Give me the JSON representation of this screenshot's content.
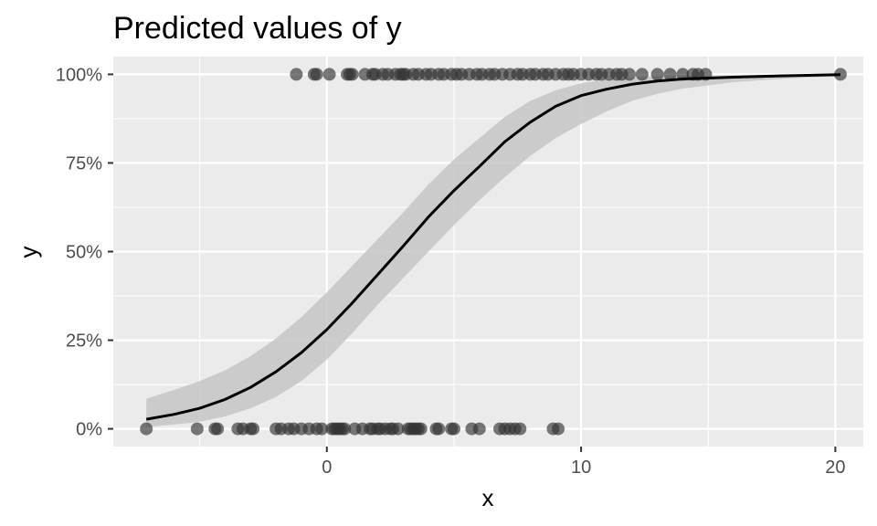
{
  "chart_data": {
    "type": "scatter",
    "title": "Predicted values of y",
    "xlabel": "x",
    "ylabel": "y",
    "xlim": [
      -8.4,
      21.1
    ],
    "ylim": [
      -0.05,
      1.05
    ],
    "x_ticks": [
      0,
      10,
      20
    ],
    "x_tick_labels": [
      "0",
      "10",
      "20"
    ],
    "y_ticks": [
      0,
      0.25,
      0.5,
      0.75,
      1.0
    ],
    "y_tick_labels": [
      "0%",
      "25%",
      "50%",
      "75%",
      "100%"
    ],
    "grid": true,
    "colors": {
      "panel": "#ebebeb",
      "grid": "#ffffff",
      "line": "#000000",
      "ribbon": "#c6c6c6",
      "points": "#333333"
    },
    "points": [
      {
        "x": -7.1,
        "y": 0
      },
      {
        "x": -5.1,
        "y": 0
      },
      {
        "x": -4.4,
        "y": 0
      },
      {
        "x": -4.3,
        "y": 0
      },
      {
        "x": -3.5,
        "y": 0
      },
      {
        "x": -3.3,
        "y": 0
      },
      {
        "x": -3.0,
        "y": 0
      },
      {
        "x": -2.9,
        "y": 0
      },
      {
        "x": -2.0,
        "y": 0
      },
      {
        "x": -1.8,
        "y": 0
      },
      {
        "x": -1.5,
        "y": 0
      },
      {
        "x": -1.3,
        "y": 0
      },
      {
        "x": -1.0,
        "y": 0
      },
      {
        "x": -0.7,
        "y": 0
      },
      {
        "x": -0.4,
        "y": 0
      },
      {
        "x": -0.2,
        "y": 0
      },
      {
        "x": 0.2,
        "y": 0
      },
      {
        "x": 0.3,
        "y": 0
      },
      {
        "x": 0.4,
        "y": 0
      },
      {
        "x": 0.5,
        "y": 0
      },
      {
        "x": 0.6,
        "y": 0
      },
      {
        "x": 0.7,
        "y": 0
      },
      {
        "x": 1.1,
        "y": 0
      },
      {
        "x": 1.4,
        "y": 0
      },
      {
        "x": 1.7,
        "y": 0
      },
      {
        "x": 1.8,
        "y": 0
      },
      {
        "x": 2.0,
        "y": 0
      },
      {
        "x": 2.1,
        "y": 0
      },
      {
        "x": 2.3,
        "y": 0
      },
      {
        "x": 2.5,
        "y": 0
      },
      {
        "x": 2.6,
        "y": 0
      },
      {
        "x": 2.8,
        "y": 0
      },
      {
        "x": 3.2,
        "y": 0
      },
      {
        "x": 3.3,
        "y": 0
      },
      {
        "x": 3.4,
        "y": 0
      },
      {
        "x": 3.5,
        "y": 0
      },
      {
        "x": 3.6,
        "y": 0
      },
      {
        "x": 3.7,
        "y": 0
      },
      {
        "x": 4.3,
        "y": 0
      },
      {
        "x": 4.4,
        "y": 0
      },
      {
        "x": 4.9,
        "y": 0
      },
      {
        "x": 5.0,
        "y": 0
      },
      {
        "x": 5.7,
        "y": 0
      },
      {
        "x": 6.0,
        "y": 0
      },
      {
        "x": 6.8,
        "y": 0
      },
      {
        "x": 7.0,
        "y": 0
      },
      {
        "x": 7.2,
        "y": 0
      },
      {
        "x": 7.4,
        "y": 0
      },
      {
        "x": 7.6,
        "y": 0
      },
      {
        "x": 8.9,
        "y": 0
      },
      {
        "x": 9.1,
        "y": 0
      },
      {
        "x": -1.2,
        "y": 1
      },
      {
        "x": -0.5,
        "y": 1
      },
      {
        "x": -0.4,
        "y": 1
      },
      {
        "x": 0.1,
        "y": 1
      },
      {
        "x": 0.8,
        "y": 1
      },
      {
        "x": 0.9,
        "y": 1
      },
      {
        "x": 1.0,
        "y": 1
      },
      {
        "x": 1.5,
        "y": 1
      },
      {
        "x": 1.8,
        "y": 1
      },
      {
        "x": 1.9,
        "y": 1
      },
      {
        "x": 2.2,
        "y": 1
      },
      {
        "x": 2.4,
        "y": 1
      },
      {
        "x": 2.7,
        "y": 1
      },
      {
        "x": 2.9,
        "y": 1
      },
      {
        "x": 3.0,
        "y": 1
      },
      {
        "x": 3.1,
        "y": 1
      },
      {
        "x": 3.4,
        "y": 1
      },
      {
        "x": 3.6,
        "y": 1
      },
      {
        "x": 3.9,
        "y": 1
      },
      {
        "x": 4.1,
        "y": 1
      },
      {
        "x": 4.4,
        "y": 1
      },
      {
        "x": 4.6,
        "y": 1
      },
      {
        "x": 4.9,
        "y": 1
      },
      {
        "x": 5.1,
        "y": 1
      },
      {
        "x": 5.3,
        "y": 1
      },
      {
        "x": 5.6,
        "y": 1
      },
      {
        "x": 5.9,
        "y": 1
      },
      {
        "x": 6.1,
        "y": 1
      },
      {
        "x": 6.4,
        "y": 1
      },
      {
        "x": 6.6,
        "y": 1
      },
      {
        "x": 6.9,
        "y": 1
      },
      {
        "x": 7.2,
        "y": 1
      },
      {
        "x": 7.5,
        "y": 1
      },
      {
        "x": 7.7,
        "y": 1
      },
      {
        "x": 8.0,
        "y": 1
      },
      {
        "x": 8.2,
        "y": 1
      },
      {
        "x": 8.5,
        "y": 1
      },
      {
        "x": 8.7,
        "y": 1
      },
      {
        "x": 9.0,
        "y": 1
      },
      {
        "x": 9.3,
        "y": 1
      },
      {
        "x": 9.5,
        "y": 1
      },
      {
        "x": 9.7,
        "y": 1
      },
      {
        "x": 10.0,
        "y": 1
      },
      {
        "x": 10.3,
        "y": 1
      },
      {
        "x": 10.6,
        "y": 1
      },
      {
        "x": 10.8,
        "y": 1
      },
      {
        "x": 11.1,
        "y": 1
      },
      {
        "x": 11.4,
        "y": 1
      },
      {
        "x": 11.6,
        "y": 1
      },
      {
        "x": 11.9,
        "y": 1
      },
      {
        "x": 12.4,
        "y": 1
      },
      {
        "x": 13.0,
        "y": 1
      },
      {
        "x": 13.5,
        "y": 1
      },
      {
        "x": 14.0,
        "y": 1
      },
      {
        "x": 14.4,
        "y": 1
      },
      {
        "x": 14.6,
        "y": 1
      },
      {
        "x": 14.9,
        "y": 1
      },
      {
        "x": 20.2,
        "y": 1
      }
    ],
    "curve": [
      {
        "x": -7.1,
        "y": 0.027,
        "lower": 0.005,
        "upper": 0.085
      },
      {
        "x": -6.0,
        "y": 0.041,
        "lower": 0.012,
        "upper": 0.11
      },
      {
        "x": -5.0,
        "y": 0.058,
        "lower": 0.02,
        "upper": 0.135
      },
      {
        "x": -4.0,
        "y": 0.083,
        "lower": 0.035,
        "upper": 0.165
      },
      {
        "x": -3.0,
        "y": 0.117,
        "lower": 0.058,
        "upper": 0.205
      },
      {
        "x": -2.0,
        "y": 0.161,
        "lower": 0.09,
        "upper": 0.255
      },
      {
        "x": -1.0,
        "y": 0.215,
        "lower": 0.135,
        "upper": 0.315
      },
      {
        "x": 0.0,
        "y": 0.28,
        "lower": 0.195,
        "upper": 0.385
      },
      {
        "x": 1.0,
        "y": 0.355,
        "lower": 0.27,
        "upper": 0.46
      },
      {
        "x": 2.0,
        "y": 0.435,
        "lower": 0.35,
        "upper": 0.535
      },
      {
        "x": 3.0,
        "y": 0.515,
        "lower": 0.425,
        "upper": 0.61
      },
      {
        "x": 4.0,
        "y": 0.598,
        "lower": 0.5,
        "upper": 0.69
      },
      {
        "x": 5.0,
        "y": 0.672,
        "lower": 0.575,
        "upper": 0.76
      },
      {
        "x": 6.0,
        "y": 0.74,
        "lower": 0.645,
        "upper": 0.82
      },
      {
        "x": 7.0,
        "y": 0.81,
        "lower": 0.71,
        "upper": 0.88
      },
      {
        "x": 8.0,
        "y": 0.865,
        "lower": 0.77,
        "upper": 0.925
      },
      {
        "x": 9.0,
        "y": 0.91,
        "lower": 0.82,
        "upper": 0.955
      },
      {
        "x": 10.0,
        "y": 0.94,
        "lower": 0.86,
        "upper": 0.975
      },
      {
        "x": 11.0,
        "y": 0.958,
        "lower": 0.895,
        "upper": 0.985
      },
      {
        "x": 12.0,
        "y": 0.972,
        "lower": 0.925,
        "upper": 0.99
      },
      {
        "x": 13.0,
        "y": 0.981,
        "lower": 0.945,
        "upper": 0.994
      },
      {
        "x": 14.0,
        "y": 0.987,
        "lower": 0.96,
        "upper": 0.996
      },
      {
        "x": 16.0,
        "y": 0.992,
        "lower": 0.978,
        "upper": 0.998
      },
      {
        "x": 18.0,
        "y": 0.996,
        "lower": 0.988,
        "upper": 0.999
      },
      {
        "x": 20.2,
        "y": 0.999,
        "lower": 0.995,
        "upper": 1.0
      }
    ]
  }
}
